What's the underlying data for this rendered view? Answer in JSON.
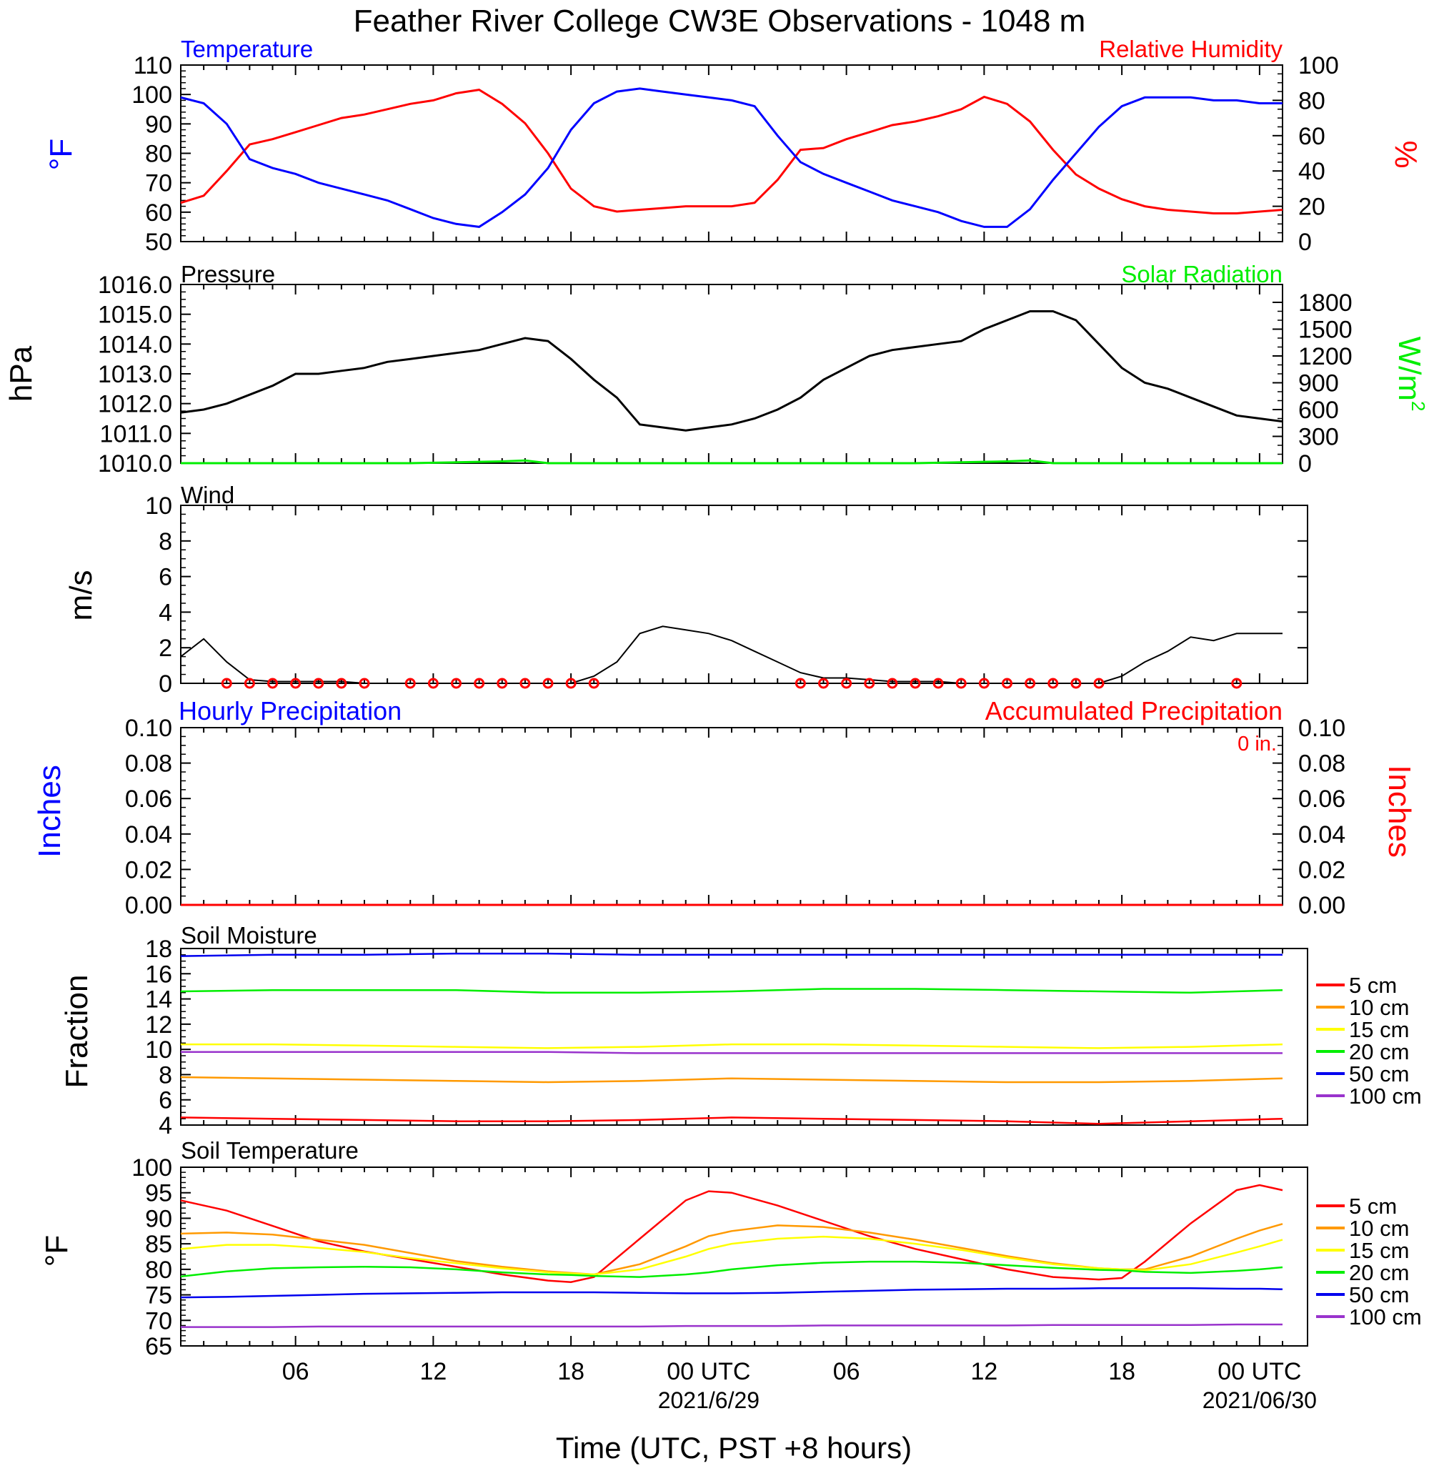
{
  "title": "Feather River College CW3E Observations - 1048 m",
  "xlabel": "Time (UTC, PST +8 hours)",
  "time_axis": {
    "range_hours": [
      0,
      48
    ],
    "tick_labels": [
      {
        "hour": 5,
        "label": "06"
      },
      {
        "hour": 11,
        "label": "12"
      },
      {
        "hour": 17,
        "label": "18"
      },
      {
        "hour": 23,
        "label": "00 UTC",
        "date": "2021/6/29"
      },
      {
        "hour": 29,
        "label": "06"
      },
      {
        "hour": 35,
        "label": "12"
      },
      {
        "hour": 41,
        "label": "18"
      },
      {
        "hour": 47,
        "label": "00 UTC",
        "date": "2021/06/30"
      }
    ]
  },
  "colors": {
    "temperature": "#0000ff",
    "humidity": "#ff0000",
    "pressure": "#000000",
    "solar": "#00ee00",
    "wind": "#000000",
    "wind_barb": "#ff0000",
    "soil": {
      "5 cm": "#ff0000",
      "10 cm": "#ff9900",
      "15 cm": "#ffff00",
      "20 cm": "#00ee00",
      "50 cm": "#0000ee",
      "100 cm": "#9933cc"
    }
  },
  "panels": {
    "temperature": {
      "left_title": "Temperature",
      "right_title": "Relative Humidity",
      "left_unit": "°F",
      "right_unit": "%"
    },
    "pressure": {
      "left_title": "Pressure",
      "right_title": "Solar Radiation",
      "left_unit": "hPa",
      "right_unit": "W/m",
      "right_unit_sup": "2"
    },
    "wind": {
      "left_title": "Wind",
      "left_unit": "m/s"
    },
    "precip": {
      "left_title": "Hourly Precipitation",
      "right_title": "Accumulated Precipitation",
      "left_unit": "Inches",
      "right_unit": "Inches",
      "accum_label": "0 in."
    },
    "soil_moisture": {
      "left_title": "Soil Moisture",
      "left_unit": "Fraction"
    },
    "soil_temperature": {
      "left_title": "Soil Temperature",
      "left_unit": "°F"
    }
  },
  "chart_data": [
    {
      "type": "line",
      "name": "temperature_humidity",
      "x": [
        0,
        1,
        2,
        3,
        4,
        5,
        6,
        7,
        8,
        9,
        10,
        11,
        12,
        13,
        14,
        15,
        16,
        17,
        18,
        19,
        20,
        21,
        22,
        23,
        24,
        25,
        26,
        27,
        28,
        29,
        30,
        31,
        32,
        33,
        34,
        35,
        36,
        37,
        38,
        39,
        40,
        41,
        42,
        43,
        44,
        45,
        46,
        47,
        48
      ],
      "series": [
        {
          "name": "Temperature",
          "axis": "left",
          "values": [
            99,
            97,
            90,
            78,
            75,
            73,
            70,
            68,
            66,
            64,
            61,
            58,
            56,
            55,
            60,
            66,
            75,
            88,
            97,
            101,
            102,
            101,
            100,
            99,
            98,
            96,
            86,
            77,
            73,
            70,
            67,
            64,
            62,
            60,
            57,
            55,
            55,
            61,
            71,
            80,
            89,
            96,
            99,
            99,
            99,
            98,
            98,
            97,
            97
          ]
        },
        {
          "name": "Relative Humidity",
          "axis": "right",
          "values": [
            22,
            26,
            40,
            55,
            58,
            62,
            66,
            70,
            72,
            75,
            78,
            80,
            84,
            86,
            78,
            67,
            50,
            30,
            20,
            17,
            18,
            19,
            20,
            20,
            20,
            22,
            35,
            52,
            53,
            58,
            62,
            66,
            68,
            71,
            75,
            82,
            78,
            68,
            52,
            38,
            30,
            24,
            20,
            18,
            17,
            16,
            16,
            17,
            18
          ]
        }
      ],
      "ylim_left": [
        50,
        110
      ],
      "ylim_right": [
        0,
        100
      ],
      "yticks_left": [
        50,
        60,
        70,
        80,
        90,
        100,
        110
      ],
      "yticks_right": [
        0,
        20,
        40,
        60,
        80,
        100
      ]
    },
    {
      "type": "line",
      "name": "pressure_solar",
      "x": [
        0,
        1,
        2,
        3,
        4,
        5,
        6,
        7,
        8,
        9,
        10,
        11,
        12,
        13,
        14,
        15,
        16,
        17,
        18,
        19,
        20,
        21,
        22,
        23,
        24,
        25,
        26,
        27,
        28,
        29,
        30,
        31,
        32,
        33,
        34,
        35,
        36,
        37,
        38,
        39,
        40,
        41,
        42,
        43,
        44,
        45,
        46,
        47,
        48
      ],
      "series": [
        {
          "name": "Pressure",
          "axis": "left",
          "values": [
            1011.7,
            1011.8,
            1012.0,
            1012.3,
            1012.6,
            1013.0,
            1013.0,
            1013.1,
            1013.2,
            1013.4,
            1013.5,
            1013.6,
            1013.7,
            1013.8,
            1014.0,
            1014.2,
            1014.1,
            1013.5,
            1012.8,
            1012.2,
            1011.3,
            1011.2,
            1011.1,
            1011.2,
            1011.3,
            1011.5,
            1011.8,
            1012.2,
            1012.8,
            1013.2,
            1013.6,
            1013.8,
            1013.9,
            1014.0,
            1014.1,
            1014.5,
            1014.8,
            1015.1,
            1015.1,
            1014.8,
            1014.0,
            1013.2,
            1012.7,
            1012.5,
            1012.2,
            1011.9,
            1011.6,
            1011.5,
            1011.4
          ]
        },
        {
          "name": "Solar Radiation",
          "axis": "right",
          "values": [
            0,
            0,
            0,
            0,
            0,
            0,
            0,
            0,
            0,
            0,
            0,
            5,
            10,
            15,
            20,
            30,
            0,
            0,
            0,
            0,
            0,
            0,
            0,
            0,
            0,
            0,
            0,
            0,
            0,
            0,
            0,
            0,
            0,
            5,
            10,
            15,
            20,
            30,
            0,
            0,
            0,
            0,
            0,
            0,
            0,
            0,
            0,
            0,
            0
          ]
        }
      ],
      "ylim_left": [
        1010,
        1016
      ],
      "ylim_right": [
        0,
        2000
      ],
      "yticks_left": [
        1010.0,
        1011.0,
        1012.0,
        1013.0,
        1014.0,
        1015.0,
        1016.0
      ],
      "yticks_right": [
        0,
        300,
        600,
        900,
        1200,
        1500,
        1800
      ]
    },
    {
      "type": "line",
      "name": "wind",
      "x": [
        0,
        1,
        2,
        3,
        4,
        5,
        6,
        7,
        8,
        9,
        10,
        11,
        12,
        13,
        14,
        15,
        16,
        17,
        18,
        19,
        20,
        21,
        22,
        23,
        24,
        25,
        26,
        27,
        28,
        29,
        30,
        31,
        32,
        33,
        34,
        35,
        36,
        37,
        38,
        39,
        40,
        41,
        42,
        43,
        44,
        45,
        46,
        47,
        48
      ],
      "series": [
        {
          "name": "Wind Speed",
          "values": [
            1.5,
            2.5,
            1.2,
            0.2,
            0.1,
            0.1,
            0.1,
            0.1,
            0,
            0,
            0,
            0,
            0,
            0,
            0,
            0,
            0,
            0,
            0.4,
            1.2,
            2.8,
            3.2,
            3.0,
            2.8,
            2.4,
            1.8,
            1.2,
            0.6,
            0.3,
            0.3,
            0.2,
            0.1,
            0.1,
            0.1,
            0,
            0,
            0,
            0,
            0,
            0,
            0,
            0.4,
            1.2,
            1.8,
            2.6,
            2.4,
            2.8,
            2.8,
            2.8
          ]
        }
      ],
      "calm_hours": [
        2,
        3,
        4,
        5,
        6,
        7,
        8,
        10,
        11,
        12,
        13,
        14,
        15,
        16,
        17,
        18,
        27,
        28,
        29,
        30,
        31,
        32,
        33,
        34,
        35,
        36,
        37,
        38,
        39,
        40,
        46
      ],
      "ylim": [
        0,
        10
      ],
      "yticks": [
        0,
        2,
        4,
        6,
        8,
        10
      ]
    },
    {
      "type": "line",
      "name": "precipitation",
      "series": [
        {
          "name": "Hourly Precipitation",
          "axis": "left",
          "values": [
            0,
            0
          ]
        },
        {
          "name": "Accumulated Precipitation",
          "axis": "right",
          "values": [
            0,
            0
          ]
        }
      ],
      "x": [
        0,
        48
      ],
      "ylim_left": [
        0,
        0.1
      ],
      "ylim_right": [
        0,
        0.1
      ],
      "yticks_left": [
        0.0,
        0.02,
        0.04,
        0.06,
        0.08,
        0.1
      ],
      "yticks_right": [
        0.0,
        0.02,
        0.04,
        0.06,
        0.08,
        0.1
      ]
    },
    {
      "type": "line",
      "name": "soil_moisture",
      "x": [
        0,
        4,
        8,
        12,
        16,
        20,
        24,
        28,
        32,
        36,
        40,
        44,
        48
      ],
      "series": [
        {
          "name": "5 cm",
          "values": [
            4.6,
            4.5,
            4.4,
            4.3,
            4.3,
            4.4,
            4.6,
            4.5,
            4.4,
            4.3,
            4.1,
            4.3,
            4.5
          ]
        },
        {
          "name": "10 cm",
          "values": [
            7.8,
            7.7,
            7.6,
            7.5,
            7.4,
            7.5,
            7.7,
            7.6,
            7.5,
            7.4,
            7.4,
            7.5,
            7.7
          ]
        },
        {
          "name": "15 cm",
          "values": [
            10.4,
            10.4,
            10.3,
            10.2,
            10.1,
            10.2,
            10.4,
            10.4,
            10.3,
            10.2,
            10.1,
            10.2,
            10.4
          ]
        },
        {
          "name": "20 cm",
          "values": [
            14.6,
            14.7,
            14.7,
            14.7,
            14.5,
            14.5,
            14.6,
            14.8,
            14.8,
            14.7,
            14.6,
            14.5,
            14.7
          ]
        },
        {
          "name": "50 cm",
          "values": [
            17.4,
            17.5,
            17.5,
            17.6,
            17.6,
            17.5,
            17.5,
            17.5,
            17.5,
            17.5,
            17.5,
            17.5,
            17.5
          ]
        },
        {
          "name": "100 cm",
          "values": [
            9.8,
            9.8,
            9.8,
            9.8,
            9.8,
            9.7,
            9.7,
            9.7,
            9.7,
            9.7,
            9.7,
            9.7,
            9.7
          ]
        }
      ],
      "ylim": [
        4,
        18
      ],
      "yticks": [
        4,
        6,
        8,
        10,
        12,
        14,
        16,
        18
      ],
      "legend": "right"
    },
    {
      "type": "line",
      "name": "soil_temperature",
      "x": [
        0,
        2,
        4,
        6,
        8,
        10,
        12,
        14,
        16,
        17,
        18,
        20,
        22,
        23,
        24,
        26,
        28,
        30,
        32,
        34,
        36,
        38,
        40,
        41,
        42,
        44,
        46,
        47,
        48
      ],
      "series": [
        {
          "name": "5 cm",
          "values": [
            93.5,
            91.5,
            88.5,
            85.5,
            83.5,
            82.0,
            80.5,
            79.0,
            77.8,
            77.5,
            78.5,
            86.0,
            93.5,
            95.3,
            95.0,
            92.5,
            89.5,
            86.5,
            84.0,
            82.0,
            80.0,
            78.5,
            78.0,
            78.3,
            81.5,
            89.0,
            95.5,
            96.5,
            95.5
          ]
        },
        {
          "name": "10 cm",
          "values": [
            87.0,
            87.2,
            86.8,
            85.8,
            84.8,
            83.2,
            81.6,
            80.5,
            79.6,
            79.3,
            79.0,
            81.0,
            84.5,
            86.5,
            87.5,
            88.6,
            88.3,
            87.2,
            85.8,
            84.2,
            82.6,
            81.2,
            80.2,
            80.0,
            80.0,
            82.5,
            86.0,
            87.6,
            88.9
          ]
        },
        {
          "name": "15 cm",
          "values": [
            84.0,
            84.8,
            84.8,
            84.2,
            83.4,
            82.2,
            81.2,
            80.2,
            79.4,
            79.2,
            79.0,
            80.0,
            82.5,
            84.0,
            85.0,
            86.0,
            86.4,
            86.0,
            85.0,
            83.8,
            82.3,
            81.0,
            80.2,
            80.0,
            79.8,
            81.0,
            83.3,
            84.5,
            85.8
          ]
        },
        {
          "name": "20 cm",
          "values": [
            78.6,
            79.6,
            80.2,
            80.4,
            80.5,
            80.4,
            80.0,
            79.4,
            79.0,
            78.9,
            78.7,
            78.5,
            79.0,
            79.4,
            80.0,
            80.8,
            81.3,
            81.5,
            81.5,
            81.3,
            80.8,
            80.3,
            79.9,
            79.8,
            79.5,
            79.3,
            79.7,
            80.0,
            80.4
          ]
        },
        {
          "name": "50 cm",
          "values": [
            74.5,
            74.6,
            74.8,
            75.0,
            75.2,
            75.3,
            75.4,
            75.5,
            75.5,
            75.5,
            75.5,
            75.4,
            75.3,
            75.3,
            75.3,
            75.4,
            75.6,
            75.8,
            76.0,
            76.1,
            76.2,
            76.2,
            76.3,
            76.3,
            76.3,
            76.3,
            76.2,
            76.2,
            76.1
          ]
        },
        {
          "name": "100 cm",
          "values": [
            68.7,
            68.7,
            68.7,
            68.8,
            68.8,
            68.8,
            68.8,
            68.8,
            68.8,
            68.8,
            68.8,
            68.8,
            68.9,
            68.9,
            68.9,
            68.9,
            69.0,
            69.0,
            69.0,
            69.0,
            69.0,
            69.1,
            69.1,
            69.1,
            69.1,
            69.1,
            69.2,
            69.2,
            69.2
          ]
        }
      ],
      "ylim": [
        65,
        100
      ],
      "yticks": [
        65,
        70,
        75,
        80,
        85,
        90,
        95,
        100
      ],
      "legend": "right"
    }
  ]
}
